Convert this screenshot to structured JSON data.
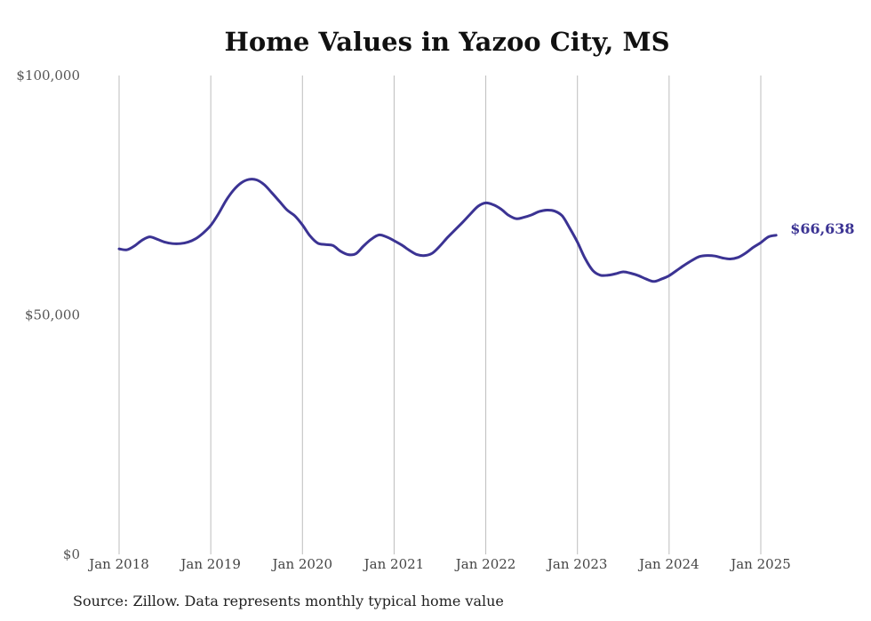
{
  "chart_data": {
    "type": "line",
    "title": "Home Values in Yazoo City, MS",
    "source": "Source: Zillow. Data represents monthly typical home value",
    "xlabel": "",
    "ylabel": "",
    "ylim": [
      0,
      100000
    ],
    "y_ticks": [
      {
        "value": 100000,
        "label": "$100,000"
      },
      {
        "value": 50000,
        "label": "$50,000"
      },
      {
        "value": 0,
        "label": "$0"
      }
    ],
    "x_ticks": [
      {
        "date": "2018-01",
        "label": "Jan 2018"
      },
      {
        "date": "2019-01",
        "label": "Jan 2019"
      },
      {
        "date": "2020-01",
        "label": "Jan 2020"
      },
      {
        "date": "2021-01",
        "label": "Jan 2021"
      },
      {
        "date": "2022-01",
        "label": "Jan 2022"
      },
      {
        "date": "2023-01",
        "label": "Jan 2023"
      },
      {
        "date": "2024-01",
        "label": "Jan 2024"
      },
      {
        "date": "2025-01",
        "label": "Jan 2025"
      }
    ],
    "grid": "vertical",
    "line_color": "#3b3393",
    "end_label": "$66,638",
    "series": [
      {
        "x": [
          "2018-01",
          "2018-02",
          "2018-03",
          "2018-04",
          "2018-05",
          "2018-06",
          "2018-07",
          "2018-08",
          "2018-09",
          "2018-10",
          "2018-11",
          "2018-12",
          "2019-01",
          "2019-02",
          "2019-03",
          "2019-04",
          "2019-05",
          "2019-06",
          "2019-07",
          "2019-08",
          "2019-09",
          "2019-10",
          "2019-11",
          "2019-12",
          "2020-01",
          "2020-02",
          "2020-03",
          "2020-04",
          "2020-05",
          "2020-06",
          "2020-07",
          "2020-08",
          "2020-09",
          "2020-10",
          "2020-11",
          "2020-12",
          "2021-01",
          "2021-02",
          "2021-03",
          "2021-04",
          "2021-05",
          "2021-06",
          "2021-07",
          "2021-08",
          "2021-09",
          "2021-10",
          "2021-11",
          "2021-12",
          "2022-01",
          "2022-02",
          "2022-03",
          "2022-04",
          "2022-05",
          "2022-06",
          "2022-07",
          "2022-08",
          "2022-09",
          "2022-10",
          "2022-11",
          "2022-12",
          "2023-01",
          "2023-02",
          "2023-03",
          "2023-04",
          "2023-05",
          "2023-06",
          "2023-07",
          "2023-08",
          "2023-09",
          "2023-10",
          "2023-11",
          "2023-12",
          "2024-01",
          "2024-02",
          "2024-03",
          "2024-04",
          "2024-05",
          "2024-06",
          "2024-07",
          "2024-08",
          "2024-09",
          "2024-10",
          "2024-11",
          "2024-12",
          "2025-01",
          "2025-02",
          "2025-03"
        ],
        "values": [
          63800,
          63600,
          64400,
          65600,
          66300,
          65800,
          65200,
          64900,
          64900,
          65200,
          65900,
          67100,
          68700,
          71100,
          73900,
          76100,
          77600,
          78300,
          78200,
          77200,
          75500,
          73700,
          71900,
          70700,
          68800,
          66500,
          65000,
          64700,
          64500,
          63300,
          62600,
          62800,
          64400,
          65800,
          66700,
          66300,
          65500,
          64600,
          63500,
          62600,
          62400,
          62900,
          64400,
          66200,
          67800,
          69400,
          71100,
          72700,
          73400,
          73000,
          72100,
          70800,
          70100,
          70400,
          70900,
          71600,
          71900,
          71700,
          70700,
          68100,
          65200,
          61800,
          59300,
          58300,
          58300,
          58600,
          59000,
          58700,
          58200,
          57500,
          57000,
          57500,
          58200,
          59300,
          60400,
          61400,
          62200,
          62400,
          62300,
          61900,
          61700,
          62000,
          62900,
          64100,
          65100,
          66300,
          66638
        ]
      }
    ]
  }
}
